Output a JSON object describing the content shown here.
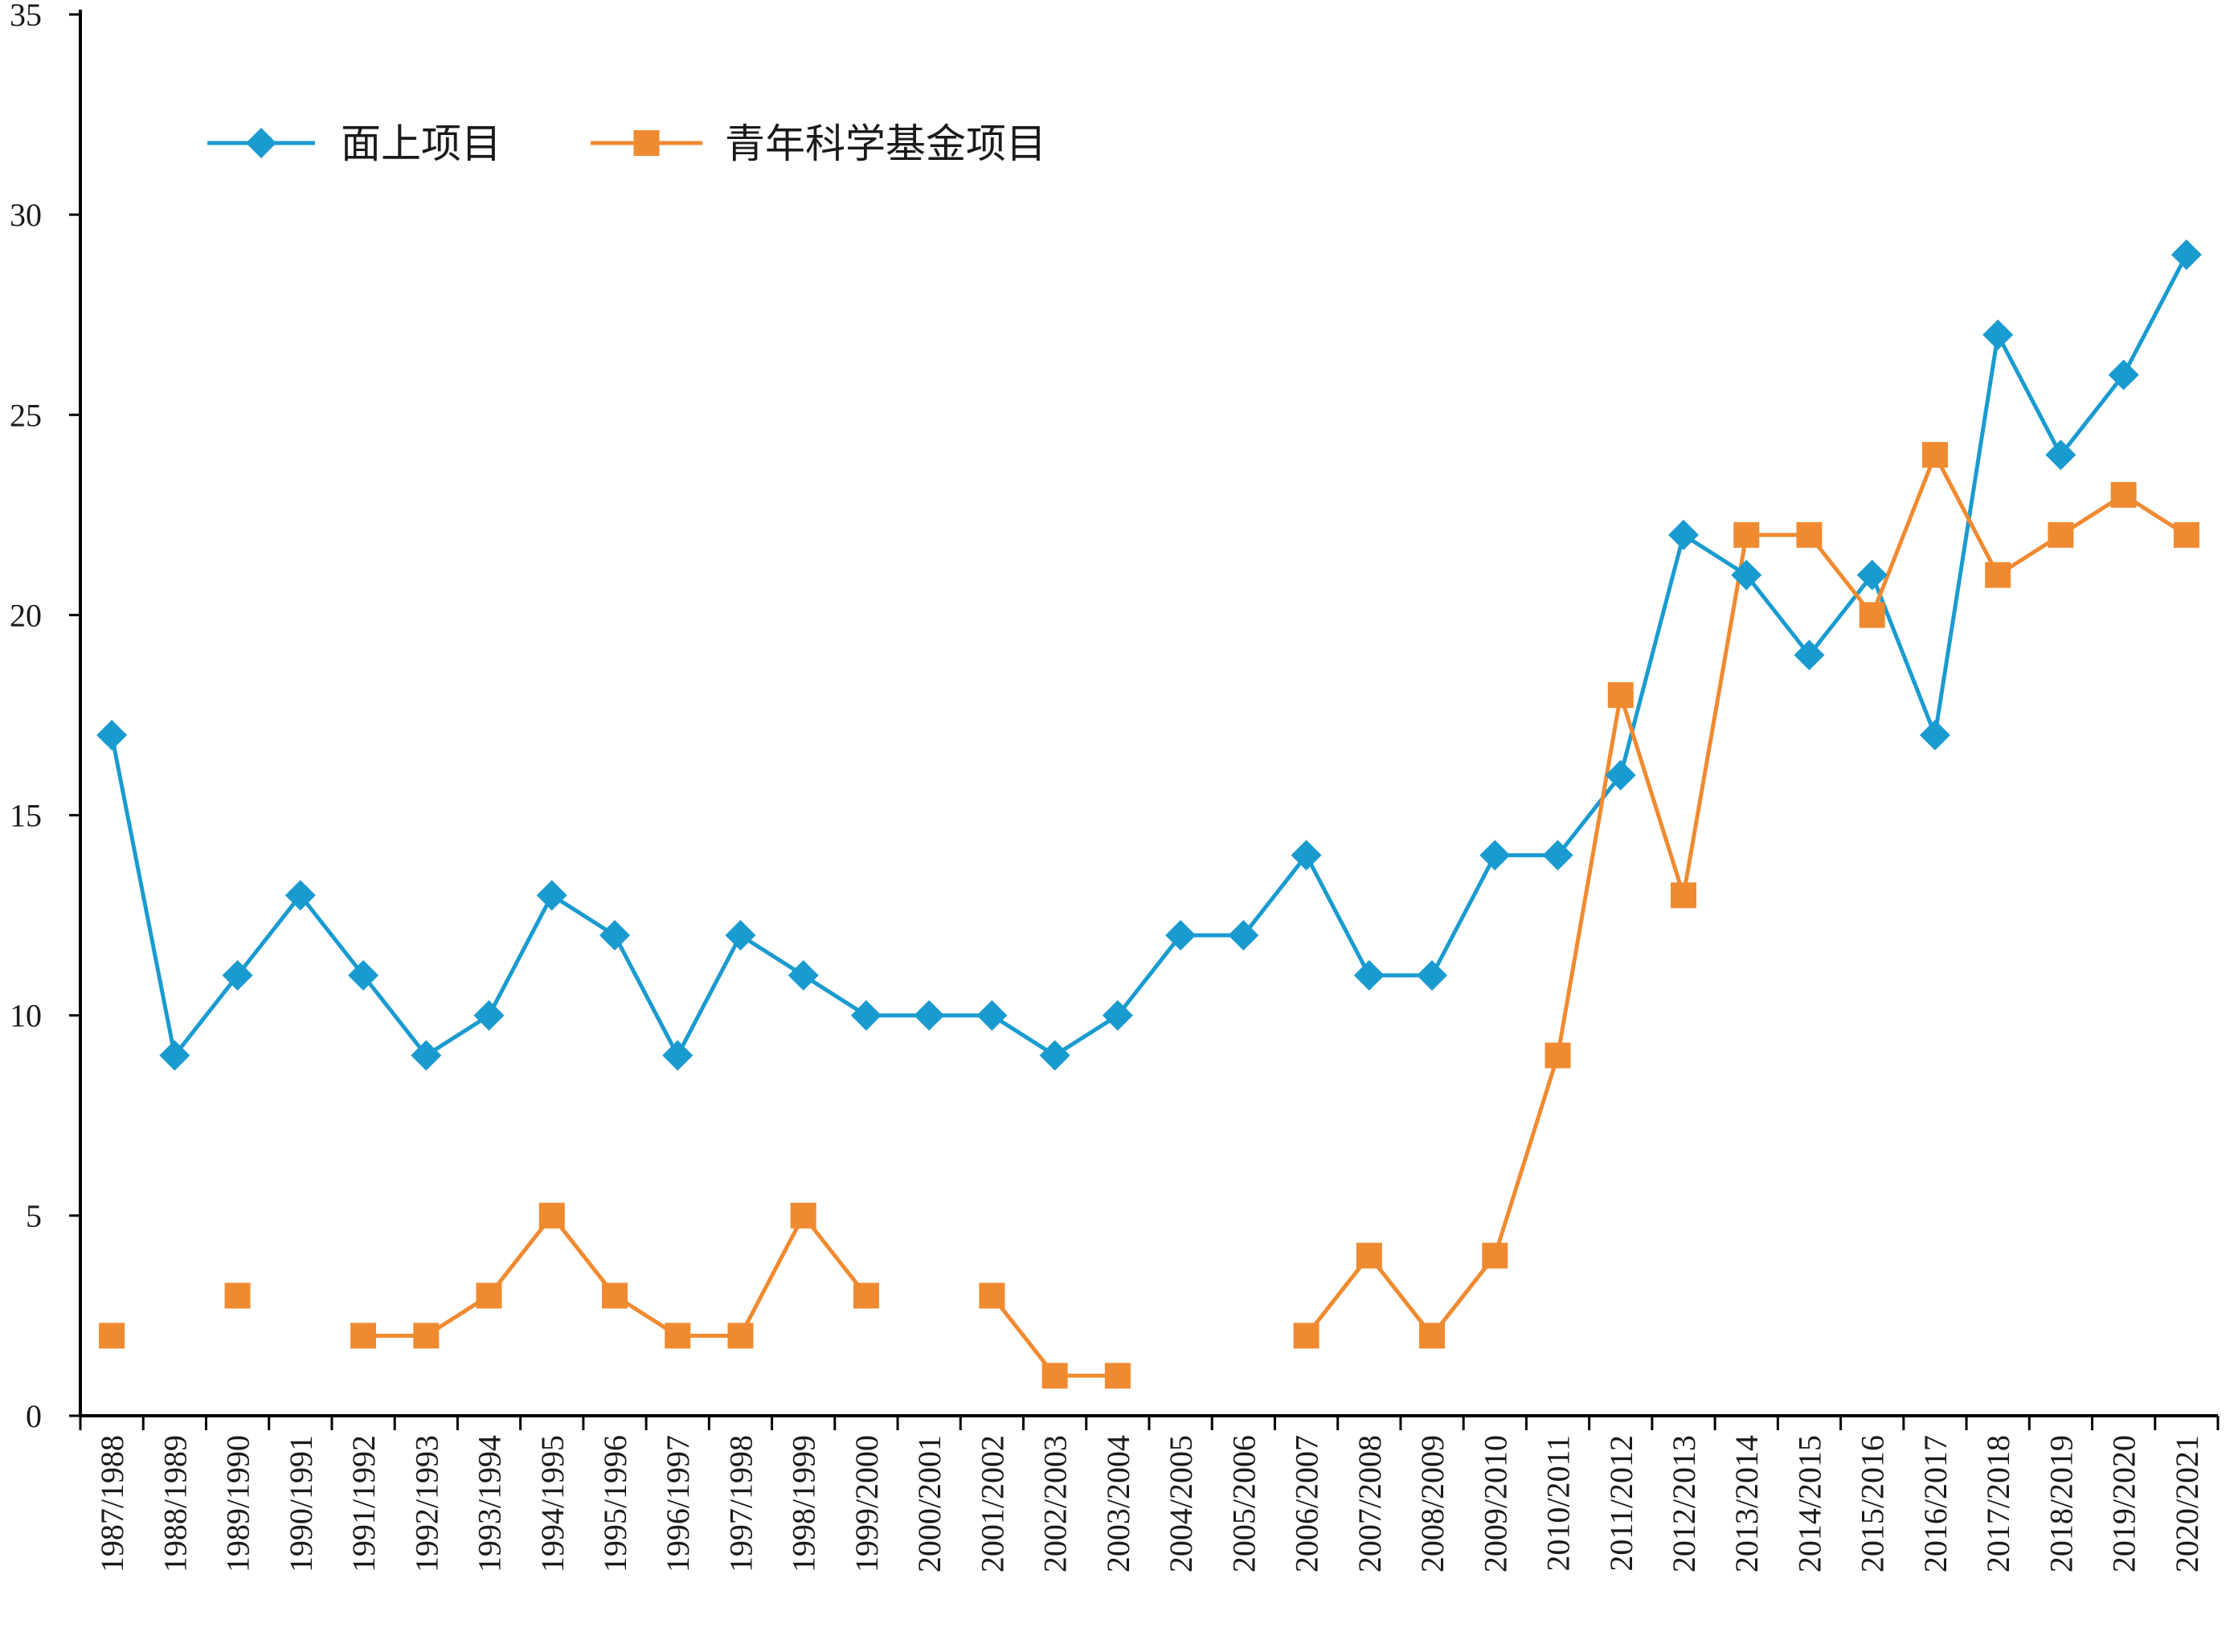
{
  "chart_data": {
    "type": "line",
    "title": "",
    "xlabel": "",
    "ylabel": "",
    "ylim": [
      0,
      35
    ],
    "yticks": [
      0,
      5,
      10,
      15,
      20,
      25,
      30,
      35
    ],
    "grid": false,
    "legend_position": "top-left",
    "categories": [
      "1987/1988",
      "1988/1989",
      "1989/1990",
      "1990/1991",
      "1991/1992",
      "1992/1993",
      "1993/1994",
      "1994/1995",
      "1995/1996",
      "1996/1997",
      "1997/1998",
      "1998/1999",
      "1999/2000",
      "2000/2001",
      "2001/2002",
      "2002/2003",
      "2003/2004",
      "2004/2005",
      "2005/2006",
      "2006/2007",
      "2007/2008",
      "2008/2009",
      "2009/2010",
      "2010/2011",
      "2011/2012",
      "2012/2013",
      "2013/2014",
      "2014/2015",
      "2015/2016",
      "2016/2017",
      "2017/2018",
      "2018/2019",
      "2019/2020",
      "2020/2021"
    ],
    "series": [
      {
        "name": "面上项目",
        "color": "#1a9bd0",
        "marker": "diamond",
        "values": [
          17,
          9,
          11,
          13,
          11,
          9,
          10,
          13,
          12,
          9,
          12,
          11,
          10,
          10,
          10,
          9,
          10,
          12,
          12,
          14,
          11,
          11,
          14,
          14,
          16,
          22,
          21,
          19,
          21,
          17,
          27,
          24,
          26,
          29
        ]
      },
      {
        "name": "青年科学基金项目",
        "color": "#f08a30",
        "marker": "square",
        "values": [
          2,
          null,
          3,
          null,
          2,
          2,
          3,
          5,
          3,
          2,
          2,
          5,
          3,
          null,
          3,
          1,
          1,
          null,
          null,
          2,
          4,
          2,
          4,
          9,
          18,
          13,
          22,
          22,
          20,
          24,
          21,
          22,
          23,
          22
        ]
      }
    ]
  }
}
